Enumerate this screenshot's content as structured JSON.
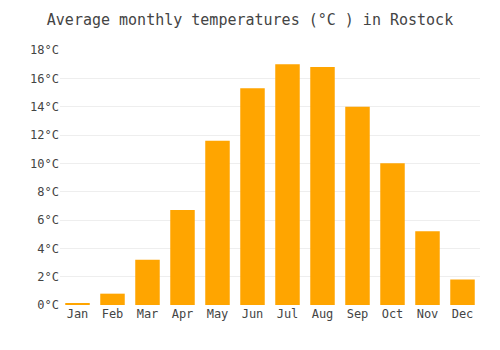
{
  "chart_data": {
    "type": "bar",
    "title": "Average monthly temperatures (°C ) in Rostock",
    "categories": [
      "Jan",
      "Feb",
      "Mar",
      "Apr",
      "May",
      "Jun",
      "Jul",
      "Aug",
      "Sep",
      "Oct",
      "Nov",
      "Dec"
    ],
    "values": [
      0.1,
      0.8,
      3.2,
      6.7,
      11.6,
      15.3,
      17.0,
      16.8,
      14.0,
      10.0,
      5.2,
      1.8
    ],
    "color": "#FFA500",
    "ylim": [
      0,
      18
    ],
    "yticks": [
      {
        "value": 0,
        "label": "0°C"
      },
      {
        "value": 2,
        "label": "2°C"
      },
      {
        "value": 4,
        "label": "4°C"
      },
      {
        "value": 6,
        "label": "6°C"
      },
      {
        "value": 8,
        "label": "8°C"
      },
      {
        "value": 10,
        "label": "10°C"
      },
      {
        "value": 12,
        "label": "12°C"
      },
      {
        "value": 14,
        "label": "14°C"
      },
      {
        "value": 16,
        "label": "16°C"
      },
      {
        "value": 18,
        "label": "18°C"
      }
    ],
    "grid": true
  }
}
